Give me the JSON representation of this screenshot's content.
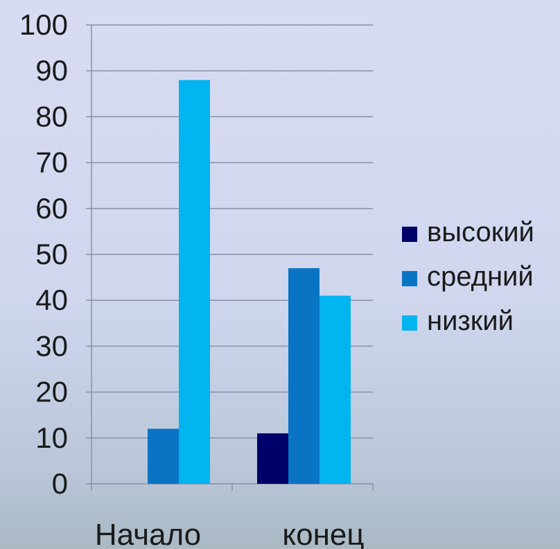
{
  "chart_data": {
    "type": "bar",
    "title": "",
    "xlabel": "",
    "ylabel": "",
    "categories": [
      "Начало",
      "конец"
    ],
    "series": [
      {
        "name": "высокий",
        "color": "#00006b",
        "values": [
          0,
          11
        ]
      },
      {
        "name": "средний",
        "color": "#0a74c4",
        "values": [
          12,
          47
        ]
      },
      {
        "name": "низкий",
        "color": "#02b4ef",
        "values": [
          88,
          41
        ]
      }
    ],
    "ylim": [
      0,
      100
    ],
    "yticks": [
      0,
      10,
      20,
      30,
      40,
      50,
      60,
      70,
      80,
      90,
      100
    ],
    "grid": true,
    "legend_position": "right"
  }
}
